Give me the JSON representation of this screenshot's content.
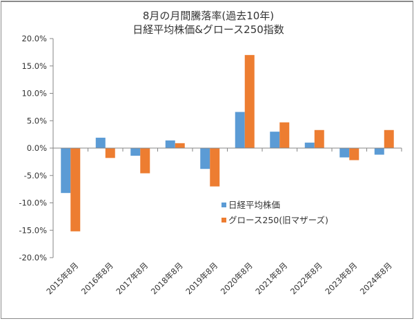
{
  "chart_data": {
    "type": "bar",
    "title": [
      "8月の月間騰落率(過去10年)",
      "日経平均株価&グロース250指数"
    ],
    "xlabel": "",
    "ylabel": "",
    "ylim": [
      -20,
      20
    ],
    "y_ticks": [
      20,
      15,
      10,
      5,
      0,
      -5,
      -10,
      -15,
      -20
    ],
    "y_tick_labels": [
      "20.0%",
      "15.0%",
      "10.0%",
      "5.0%",
      "0.0%",
      "-5.0%",
      "-10.0%",
      "-15.0%",
      "-20.0%"
    ],
    "grid": false,
    "legend_position": "center-right",
    "categories": [
      "2015年8月",
      "2016年8月",
      "2017年8月",
      "2018年8月",
      "2019年8月",
      "2020年8月",
      "2021年8月",
      "2022年8月",
      "2023年8月",
      "2024年8月"
    ],
    "series": [
      {
        "name": "日経平均株価",
        "color": "#5B9BD5",
        "values": [
          -8.2,
          1.9,
          -1.4,
          1.4,
          -3.8,
          6.6,
          3.0,
          1.0,
          -1.7,
          -1.2
        ]
      },
      {
        "name": "グロース250(旧マザーズ)",
        "color": "#ED7D31",
        "values": [
          -15.2,
          -1.8,
          -4.6,
          0.9,
          -7.0,
          17.0,
          4.7,
          3.3,
          -2.2,
          3.3
        ]
      }
    ]
  }
}
